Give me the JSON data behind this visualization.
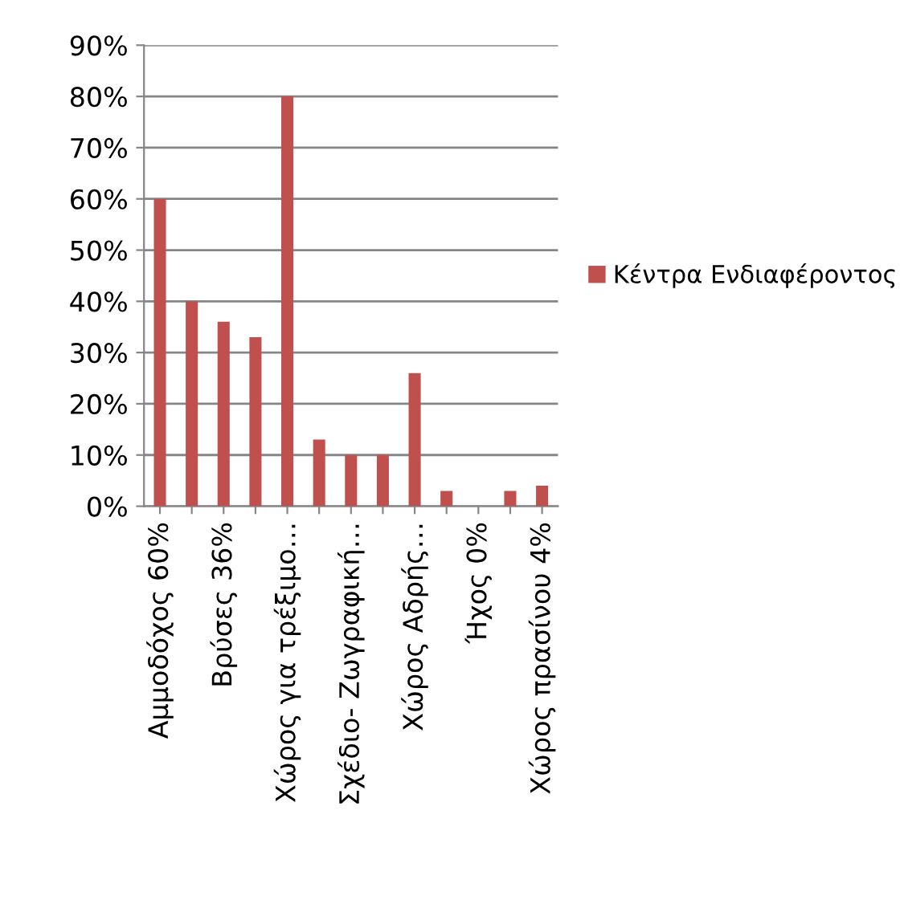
{
  "chart_data": {
    "type": "bar",
    "categories": [
      "Αμμοδόχος 60%",
      null,
      "Βρύσες 36%",
      null,
      "Χώρος για τρέξιμο…",
      null,
      "Σχέδιο- Ζωγραφική…",
      null,
      "Χώρος Αδρής…",
      null,
      "Ήχος 0%",
      null,
      "Χώρος πρασίνου 4%"
    ],
    "series": [
      {
        "name": "Κέντρα Ενδιαφέροντος",
        "color": "#c0504d",
        "values": [
          60,
          40,
          36,
          33,
          80,
          13,
          10,
          10,
          26,
          3,
          0,
          3,
          4
        ]
      }
    ],
    "ylim": [
      0,
      90
    ],
    "yticks": [
      {
        "value": 0,
        "label": "0%"
      },
      {
        "value": 10,
        "label": "10%"
      },
      {
        "value": 20,
        "label": "20%"
      },
      {
        "value": 30,
        "label": "30%"
      },
      {
        "value": 40,
        "label": "40%"
      },
      {
        "value": 50,
        "label": "50%"
      },
      {
        "value": 60,
        "label": "60%"
      },
      {
        "value": 70,
        "label": "70%"
      },
      {
        "value": 80,
        "label": "80%"
      },
      {
        "value": 90,
        "label": "90%"
      }
    ],
    "grid": "y",
    "legend": "right"
  }
}
